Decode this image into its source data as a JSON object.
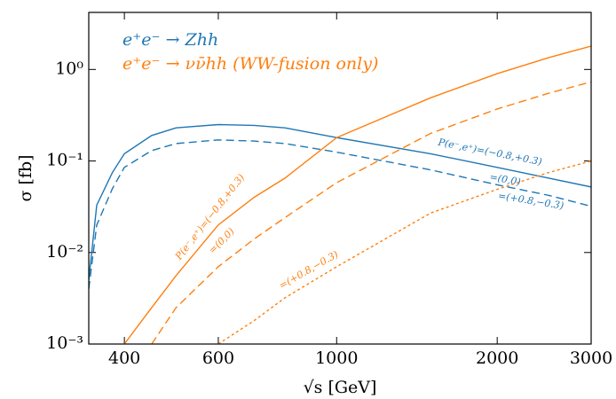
{
  "chart_data": {
    "type": "line",
    "xlabel": "√s [GeV]",
    "ylabel": "σ [fb]",
    "xscale": "log",
    "yscale": "log",
    "xlim": [
      343,
      3000
    ],
    "ylim": [
      0.001,
      4.2
    ],
    "xticks": [
      400,
      600,
      1000,
      2000,
      3000
    ],
    "yticks": [
      {
        "value": 1,
        "label": "10⁰"
      },
      {
        "value": 0.1,
        "label": "10⁻¹"
      },
      {
        "value": 0.01,
        "label": "10⁻²"
      },
      {
        "value": 0.001,
        "label": "10⁻³"
      }
    ],
    "x": [
      343,
      355,
      380,
      400,
      450,
      500,
      600,
      700,
      800,
      1000,
      1500,
      2000,
      2500,
      3000
    ],
    "series": [
      {
        "name": "e⁺e⁻ → Zhh",
        "color": "#1f77b4",
        "lines": [
          {
            "dash": "solid",
            "values": [
              0.005,
              0.033,
              0.075,
              0.12,
              0.19,
              0.23,
              0.25,
              0.245,
              0.23,
              0.18,
              0.12,
              0.085,
              0.065,
              0.052
            ]
          },
          {
            "dash": "dashed",
            "values": [
              0.004,
              0.02,
              0.05,
              0.085,
              0.13,
              0.155,
              0.17,
              0.165,
              0.155,
              0.125,
              0.08,
              0.055,
              0.042,
              0.032
            ]
          }
        ]
      },
      {
        "name": "e⁺e⁻ → νν̄hh (WW-fusion only)",
        "color": "#ff7f0e",
        "lines": [
          {
            "dash": "solid",
            "values": [
              null,
              null,
              null,
              0.001,
              0.0025,
              0.0056,
              0.02,
              0.04,
              0.065,
              0.18,
              0.49,
              0.9,
              1.35,
              1.8
            ]
          },
          {
            "dash": "dashed",
            "values": [
              null,
              null,
              null,
              null,
              0.001,
              0.0025,
              0.007,
              0.014,
              0.024,
              0.058,
              0.2,
              0.37,
              0.55,
              0.73
            ]
          },
          {
            "dash": "dotted",
            "values": [
              null,
              null,
              null,
              null,
              null,
              null,
              0.001,
              0.0018,
              0.0032,
              0.007,
              0.027,
              0.049,
              0.075,
              0.1
            ]
          }
        ]
      }
    ],
    "annotations": [
      "P(e⁻,e⁺)=(−0.8,+0.3)",
      "=(0,0)",
      "=(+0.8,−0.3)",
      "P(e⁻,e⁺)=(−0.8,+0.3)",
      "=(0,0)",
      "=(+0.8,−0.3)"
    ]
  }
}
